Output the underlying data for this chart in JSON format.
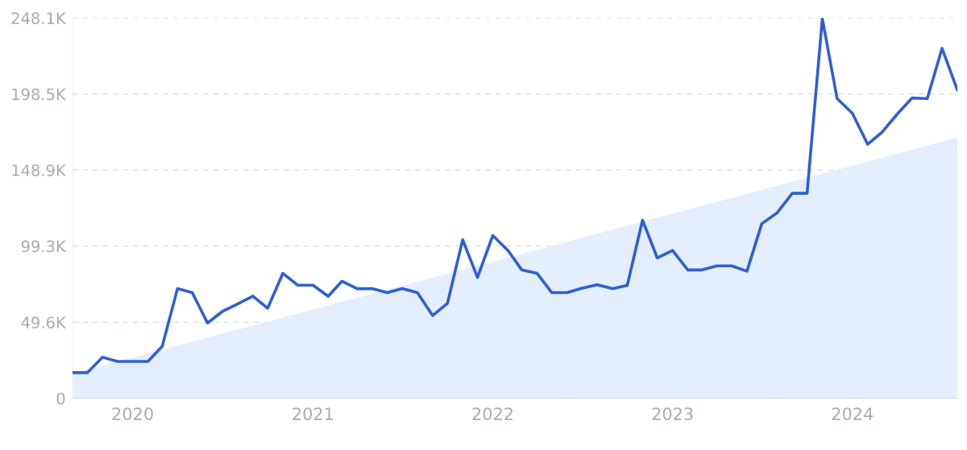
{
  "chart_data": {
    "type": "line",
    "x": [
      "2019-09",
      "2019-10",
      "2019-11",
      "2019-12",
      "2020-01",
      "2020-02",
      "2020-03",
      "2020-04",
      "2020-05",
      "2020-06",
      "2020-07",
      "2020-08",
      "2020-09",
      "2020-10",
      "2020-11",
      "2020-12",
      "2021-01",
      "2021-02",
      "2021-03",
      "2021-04",
      "2021-05",
      "2021-06",
      "2021-07",
      "2021-08",
      "2021-09",
      "2021-10",
      "2021-11",
      "2021-12",
      "2022-01",
      "2022-02",
      "2022-03",
      "2022-04",
      "2022-05",
      "2022-06",
      "2022-07",
      "2022-08",
      "2022-09",
      "2022-10",
      "2022-11",
      "2022-12",
      "2023-01",
      "2023-02",
      "2023-03",
      "2023-04",
      "2023-05",
      "2023-06",
      "2023-07",
      "2023-08",
      "2023-09",
      "2023-10",
      "2023-11",
      "2023-12",
      "2024-01",
      "2024-02",
      "2024-03",
      "2024-04",
      "2024-05",
      "2024-06",
      "2024-07",
      "2024-08"
    ],
    "series": [
      {
        "type": "area",
        "x": [
          "2019-09",
          "2024-08"
        ],
        "values": [
          16000,
          170000
        ],
        "color": "#e4eefc"
      },
      {
        "color": "#2f5fd6",
        "values": [
          16700,
          16700,
          26800,
          24000,
          24000,
          24000,
          33800,
          71500,
          68900,
          49100,
          56600,
          61500,
          66600,
          58700,
          81500,
          73800,
          73800,
          66600,
          76400,
          71500,
          71500,
          68900,
          71500,
          68900,
          54000,
          61900,
          103400,
          78800,
          106200,
          96400,
          83700,
          81500,
          68900,
          68900,
          71800,
          74100,
          71500,
          73600,
          116200,
          91600,
          96400,
          83700,
          83700,
          86400,
          86400,
          82900,
          113900,
          120900,
          133700,
          133700,
          247600,
          195500,
          185900,
          165700,
          173500,
          185400,
          195900,
          195500,
          228300,
          201200
        ]
      }
    ],
    "xlim": [
      "2019-09",
      "2024-08"
    ],
    "xticks": [
      "2020",
      "2021",
      "2022",
      "2023",
      "2024"
    ],
    "ylim": [
      0,
      248100
    ],
    "yticks": [
      0,
      {
        "value": 49600,
        "label": "49.6K"
      },
      {
        "value": 99300,
        "label": "99.3K"
      },
      {
        "value": 148900,
        "label": "148.9K"
      },
      {
        "value": 198500,
        "label": "198.5K"
      },
      {
        "value": 248100,
        "label": "248.1K"
      }
    ],
    "grid": "y",
    "line_style": "solid",
    "marker": "none"
  }
}
